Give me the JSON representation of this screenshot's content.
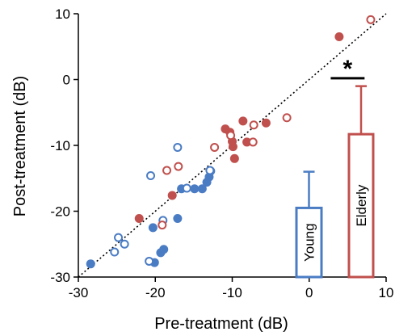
{
  "chart_data": {
    "type": "scatter",
    "title": "",
    "xlabel": "Pre-treatment (dB)",
    "ylabel": "Post-treatment (dB)",
    "xlim": [
      -30,
      10
    ],
    "ylim": [
      -30,
      10
    ],
    "xticks": [
      "-30",
      "-20",
      "-10",
      "0",
      "10"
    ],
    "yticks": [
      "-30",
      "-20",
      "-10",
      "0",
      "10"
    ],
    "identity_line": true,
    "colors": {
      "young": "#4a7cc4",
      "elderly": "#c0504d",
      "line": "#000000"
    },
    "series": [
      {
        "color_key": "young",
        "marker": "filled",
        "points": [
          [
            -20.1,
            -27.8
          ],
          [
            -20.3,
            -22.5
          ],
          [
            -19.3,
            -26.3
          ],
          [
            -18.9,
            -25.8
          ],
          [
            -17.1,
            -21.1
          ],
          [
            -16.6,
            -16.6
          ],
          [
            -14.9,
            -16.6
          ],
          [
            -13.9,
            -16.6
          ],
          [
            -13.3,
            -15.6
          ],
          [
            -13.0,
            -14.8
          ],
          [
            -12.8,
            -13.9
          ],
          [
            -28.4,
            -28.0
          ]
        ]
      },
      {
        "color_key": "young",
        "marker": "open",
        "points": [
          [
            -25.3,
            -26.2
          ],
          [
            -24.8,
            -24.0
          ],
          [
            -24.0,
            -25.0
          ],
          [
            -20.8,
            -27.6
          ],
          [
            -20.6,
            -14.6
          ],
          [
            -19.0,
            -21.4
          ],
          [
            -17.1,
            -10.3
          ],
          [
            -15.9,
            -16.5
          ],
          [
            -12.9,
            -13.8
          ]
        ]
      },
      {
        "color_key": "elderly",
        "marker": "filled",
        "points": [
          [
            -22.1,
            -21.1
          ],
          [
            -17.8,
            -17.6
          ],
          [
            -10.9,
            -7.5
          ],
          [
            -10.3,
            -8.0
          ],
          [
            -10.0,
            -9.4
          ],
          [
            -9.9,
            -10.2
          ],
          [
            -9.7,
            -12.0
          ],
          [
            -8.6,
            -6.3
          ],
          [
            -8.1,
            -9.5
          ],
          [
            -5.6,
            -6.6
          ],
          [
            3.9,
            6.5
          ]
        ]
      },
      {
        "color_key": "elderly",
        "marker": "open",
        "points": [
          [
            -19.1,
            -22.1
          ],
          [
            -18.5,
            -13.8
          ],
          [
            -17.0,
            -13.2
          ],
          [
            -12.3,
            -10.3
          ],
          [
            -10.2,
            -8.5
          ],
          [
            -7.3,
            -9.5
          ],
          [
            -7.2,
            -6.9
          ],
          [
            -2.9,
            -5.8
          ],
          [
            8.0,
            9.1
          ]
        ]
      }
    ],
    "inset_bars": [
      {
        "label": "Young",
        "color_key": "young",
        "value": -19.5,
        "error_upper": -14.0
      },
      {
        "label": "Elderly",
        "color_key": "elderly",
        "value": -8.3,
        "error_upper": -1.0
      }
    ],
    "inset_baseline": -30,
    "significance": {
      "label": "*",
      "y": 0.2,
      "x_from": 2.8,
      "x_to": 7.2
    }
  }
}
